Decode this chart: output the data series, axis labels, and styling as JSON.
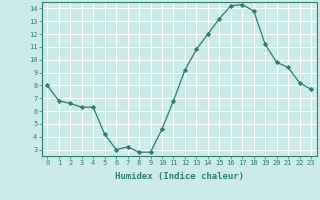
{
  "x": [
    0,
    1,
    2,
    3,
    4,
    5,
    6,
    7,
    8,
    9,
    10,
    11,
    12,
    13,
    14,
    15,
    16,
    17,
    18,
    19,
    20,
    21,
    22,
    23
  ],
  "y": [
    8.0,
    6.8,
    6.6,
    6.3,
    6.3,
    4.2,
    3.0,
    3.2,
    2.8,
    2.8,
    4.6,
    6.8,
    9.2,
    10.8,
    12.0,
    13.2,
    14.2,
    14.3,
    13.8,
    11.2,
    9.8,
    9.4,
    8.2,
    7.7
  ],
  "line_color": "#2e7d6e",
  "marker": "D",
  "marker_size": 2.2,
  "bg_color": "#cceae8",
  "grid_color": "#ffffff",
  "xlabel": "Humidex (Indice chaleur)",
  "xlim": [
    -0.5,
    23.5
  ],
  "ylim": [
    2.5,
    14.5
  ],
  "yticks": [
    3,
    4,
    5,
    6,
    7,
    8,
    9,
    10,
    11,
    12,
    13,
    14
  ],
  "xticks": [
    0,
    1,
    2,
    3,
    4,
    5,
    6,
    7,
    8,
    9,
    10,
    11,
    12,
    13,
    14,
    15,
    16,
    17,
    18,
    19,
    20,
    21,
    22,
    23
  ],
  "tick_color": "#2e7d6e",
  "label_color": "#2e7d6e",
  "tick_fontsize": 5.0,
  "xlabel_fontsize": 6.5,
  "spine_color": "#2e7d6e"
}
